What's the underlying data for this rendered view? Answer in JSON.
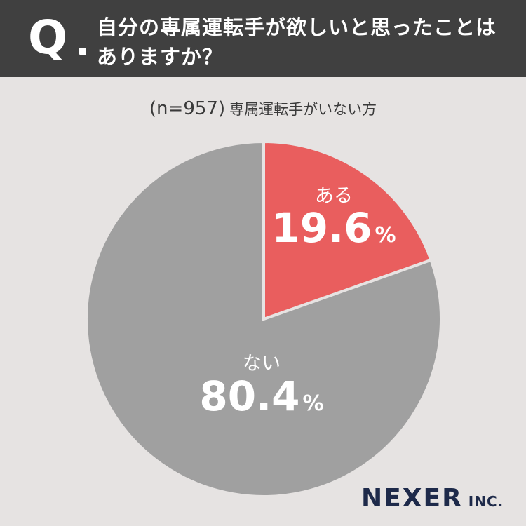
{
  "header": {
    "q_mark": "Q",
    "question_line1": "自分の専属運転手が欲しいと思ったことは",
    "question_line2": "ありますか？"
  },
  "subtitle": {
    "sample": "(n=957)",
    "group": "専属運転手がいない方"
  },
  "logo": {
    "main": "NEXER",
    "suffix": "INC."
  },
  "chart_data": {
    "type": "pie",
    "title": "",
    "slices": [
      {
        "label": "ある",
        "value": 19.6,
        "display": "19.6",
        "unit": "%",
        "color": "#e95e5e"
      },
      {
        "label": "ない",
        "value": 80.4,
        "display": "80.4",
        "unit": "%",
        "color": "#a0a0a0"
      }
    ],
    "start_angle": "12 o'clock",
    "direction": "clockwise"
  }
}
